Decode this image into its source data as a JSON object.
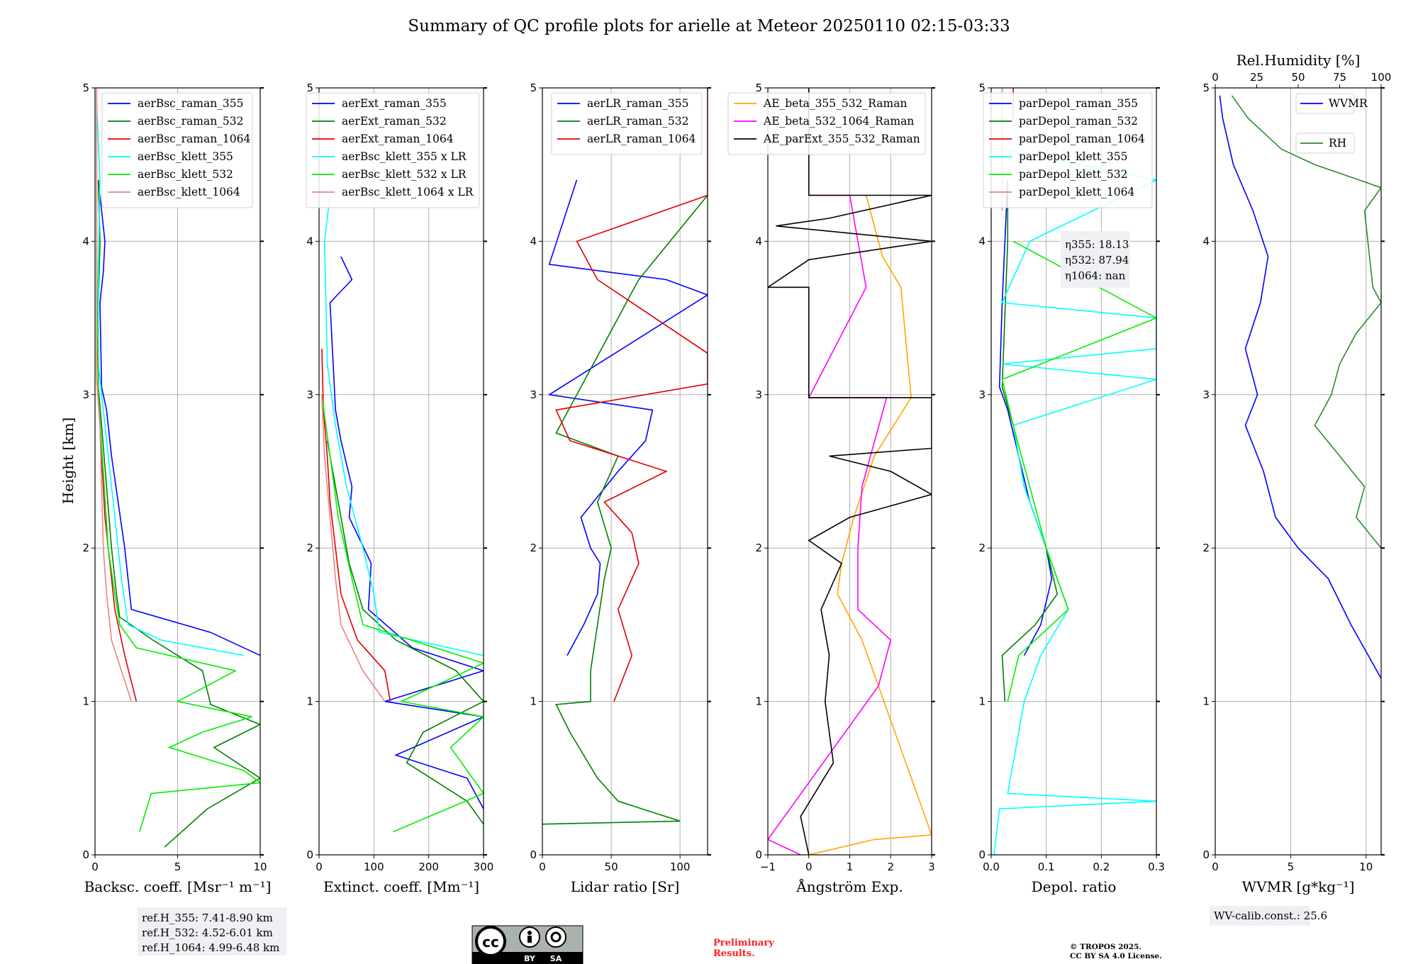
{
  "title": "Summary of QC profile plots for arielle at Meteor 20250110 02:15-03:33",
  "ylabel": "Height [km]",
  "colors": {
    "blue": "#0000ff",
    "green": "#007f00",
    "red": "#e00000",
    "cyan": "#00ffff",
    "lime": "#00ee00",
    "pink": "#f08080",
    "orange": "#ffa500",
    "magenta": "#ff00ff",
    "black": "#000000",
    "dkgreen": "#2e8b2e"
  },
  "notes": {
    "refh": [
      "ref.H_355: 7.41-8.90 km",
      "ref.H_532: 4.52-6.01 km",
      "ref.H_1064: 4.99-6.48 km"
    ],
    "eta": [
      "η355: 18.13",
      "η532: 87.94",
      "η1064: nan"
    ],
    "wv_calib": "WV-calib.const.: 25.6",
    "preliminary": [
      "Preliminary",
      "Results."
    ],
    "copyright": [
      "© TROPOS 2025.",
      "CC BY SA 4.0 License."
    ],
    "cc_badge": [
      "BY",
      "SA"
    ]
  },
  "chart_data": [
    {
      "type": "line",
      "id": "bsc",
      "xlabel": "Backsc. coeff. [Msr⁻¹ m⁻¹]",
      "ylabel": "Height [km]",
      "xlim": [
        0,
        10
      ],
      "ylim": [
        0,
        5
      ],
      "xticks": [
        0,
        5,
        10
      ],
      "yticks": [
        0,
        1,
        2,
        3,
        4,
        5
      ],
      "grid": true,
      "legend": "top-right",
      "series": [
        {
          "name": "aerBsc_raman_355",
          "color": "blue",
          "y": [
            1.3,
            1.45,
            1.6,
            1.8,
            2.0,
            2.3,
            2.6,
            2.9,
            3.05,
            3.6,
            3.8,
            4.0,
            4.2,
            4.4
          ],
          "x": [
            10,
            7,
            2.2,
            2.0,
            1.8,
            1.4,
            1.0,
            0.7,
            0.4,
            0.3,
            0.5,
            0.6,
            0.4,
            0.2
          ]
        },
        {
          "name": "aerBsc_raman_532",
          "color": "green",
          "y": [
            0.05,
            0.3,
            0.5,
            0.7,
            0.85,
            0.98,
            1.2,
            1.4,
            1.55,
            1.7,
            2.0,
            2.4,
            2.8,
            3.05,
            3.6,
            4.0,
            4.4
          ],
          "x": [
            4.2,
            6.8,
            10,
            7.2,
            10,
            7.0,
            6.5,
            3.5,
            1.5,
            1.3,
            1.0,
            0.7,
            0.4,
            0.2,
            0.2,
            0.3,
            0.2
          ]
        },
        {
          "name": "aerBsc_raman_1064",
          "color": "red",
          "y": [
            1.0,
            1.3,
            1.6,
            1.9,
            2.2,
            2.6,
            3.0,
            3.7,
            4.4
          ],
          "x": [
            2.5,
            1.8,
            1.2,
            0.9,
            0.6,
            0.4,
            0.2,
            0.1,
            0.1
          ]
        },
        {
          "name": "aerBsc_klett_355",
          "color": "cyan",
          "y": [
            1.3,
            1.4,
            1.5,
            1.8,
            2.1,
            2.5,
            2.9,
            3.2,
            3.8,
            4.4,
            4.9
          ],
          "x": [
            9,
            4,
            2,
            1.6,
            1.3,
            0.9,
            0.5,
            0.2,
            0.2,
            0.3,
            0.1
          ]
        },
        {
          "name": "aerBsc_klett_532",
          "color": "lime",
          "y": [
            0.15,
            0.4,
            0.47,
            0.55,
            0.7,
            0.8,
            0.9,
            1.0,
            1.2,
            1.35,
            1.5,
            1.7,
            2.0,
            2.5,
            3.0,
            4.0,
            5.0
          ],
          "x": [
            2.7,
            3.4,
            10,
            9,
            4.5,
            6.5,
            9.5,
            5.0,
            8.5,
            2.5,
            1.5,
            1.2,
            0.8,
            0.5,
            0.2,
            0.1,
            0.1
          ]
        },
        {
          "name": "aerBsc_klett_1064",
          "color": "pink",
          "y": [
            1.0,
            1.4,
            1.7,
            2.0,
            2.4,
            2.8,
            3.1,
            4.0,
            5.0
          ],
          "x": [
            2.2,
            1.0,
            0.7,
            0.5,
            0.4,
            0.3,
            0.1,
            0.1,
            0.1
          ]
        }
      ]
    },
    {
      "type": "line",
      "id": "ext",
      "xlabel": "Extinct. coeff. [Mm⁻¹]",
      "ylabel": "",
      "xlim": [
        0,
        300
      ],
      "ylim": [
        0,
        5
      ],
      "xticks": [
        0,
        100,
        200,
        300
      ],
      "yticks": [
        0,
        1,
        2,
        3,
        4,
        5
      ],
      "grid": true,
      "legend": "top-right",
      "series": [
        {
          "name": "aerExt_raman_355",
          "color": "blue",
          "y": [
            0.3,
            0.5,
            0.65,
            0.9,
            1.0,
            1.2,
            1.35,
            1.6,
            1.9,
            2.2,
            2.4,
            2.7,
            2.9,
            3.6,
            3.75,
            3.9
          ],
          "x": [
            300,
            270,
            140,
            300,
            120,
            300,
            170,
            90,
            95,
            55,
            60,
            40,
            30,
            20,
            60,
            40
          ]
        },
        {
          "name": "aerExt_raman_532",
          "color": "green",
          "y": [
            0.2,
            0.35,
            0.6,
            0.8,
            1.0,
            1.2,
            1.4,
            1.6,
            1.9,
            2.3,
            2.7
          ],
          "x": [
            300,
            270,
            160,
            190,
            300,
            250,
            140,
            80,
            55,
            35,
            15
          ]
        },
        {
          "name": "aerExt_raman_1064",
          "color": "red",
          "y": [
            1.0,
            1.2,
            1.4,
            1.7,
            2.0,
            2.3,
            2.6,
            2.9,
            3.3
          ],
          "x": [
            130,
            120,
            70,
            40,
            30,
            20,
            15,
            8,
            5
          ]
        },
        {
          "name": "aerBsc_klett_355 x LR",
          "color": "cyan",
          "y": [
            1.3,
            1.45,
            1.7,
            2.0,
            2.4,
            2.8,
            3.2,
            4.0,
            4.3
          ],
          "x": [
            300,
            110,
            100,
            80,
            50,
            30,
            15,
            10,
            20
          ]
        },
        {
          "name": "aerBsc_klett_532 x LR",
          "color": "lime",
          "y": [
            0.15,
            0.4,
            0.5,
            0.7,
            0.9,
            1.0,
            1.25,
            1.5,
            1.8,
            2.2,
            2.6,
            3.0
          ],
          "x": [
            135,
            300,
            280,
            240,
            300,
            150,
            300,
            80,
            60,
            35,
            20,
            5
          ]
        },
        {
          "name": "aerBsc_klett_1064 x LR",
          "color": "pink",
          "y": [
            1.0,
            1.2,
            1.5,
            1.8,
            2.2,
            2.6,
            3.0
          ],
          "x": [
            120,
            80,
            40,
            30,
            20,
            10,
            5
          ]
        }
      ]
    },
    {
      "type": "line",
      "id": "lr",
      "xlabel": "Lidar ratio [Sr]",
      "ylabel": "",
      "xlim": [
        0,
        120
      ],
      "ylim": [
        0,
        5
      ],
      "xticks": [
        0,
        50,
        100
      ],
      "yticks": [
        0,
        1,
        2,
        3,
        4,
        5
      ],
      "grid": true,
      "legend": "top-right",
      "series": [
        {
          "name": "aerLR_raman_355",
          "color": "blue",
          "y": [
            1.3,
            1.5,
            1.7,
            1.9,
            2.0,
            2.2,
            2.5,
            2.7,
            2.9,
            3.0,
            3.65,
            3.75,
            3.85,
            4.4
          ],
          "x": [
            18,
            30,
            40,
            42,
            35,
            28,
            55,
            75,
            80,
            5,
            120,
            90,
            5,
            25
          ]
        },
        {
          "name": "aerLR_raman_532",
          "color": "green",
          "y": [
            0.2,
            0.22,
            0.35,
            0.5,
            0.8,
            0.98,
            1.0,
            1.2,
            1.5,
            1.8,
            2.0,
            2.3,
            2.6,
            2.75,
            3.75,
            4.3
          ],
          "x": [
            0,
            100,
            55,
            40,
            20,
            10,
            35,
            35,
            40,
            45,
            50,
            40,
            55,
            10,
            70,
            120
          ]
        },
        {
          "name": "aerLR_raman_1064",
          "color": "red",
          "y": [
            1.0,
            1.3,
            1.6,
            1.9,
            2.1,
            2.3,
            2.5,
            2.7,
            2.9,
            3.07,
            3.27,
            3.75,
            4.0,
            4.3,
            4.55,
            4.65,
            5.0
          ],
          "x": [
            52,
            65,
            55,
            70,
            65,
            45,
            90,
            20,
            10,
            120,
            120,
            40,
            25,
            120,
            120,
            120,
            120
          ]
        }
      ]
    },
    {
      "type": "line",
      "id": "ae",
      "xlabel": "Ångström Exp.",
      "ylabel": "",
      "xlim": [
        -1,
        3
      ],
      "ylim": [
        0,
        5
      ],
      "xticks": [
        -1,
        0,
        1,
        2,
        3
      ],
      "yticks": [
        0,
        1,
        2,
        3,
        4,
        5
      ],
      "grid": true,
      "legend": "top-right",
      "series": [
        {
          "name": "AE_beta_355_532_Raman",
          "color": "orange",
          "y": [
            0.0,
            0.1,
            0.13,
            1.4,
            1.7,
            1.9,
            2.2,
            2.6,
            2.98,
            3.7,
            3.9,
            4.3
          ],
          "x": [
            0,
            1.6,
            3.0,
            1.3,
            0.7,
            0.8,
            1.1,
            1.6,
            2.5,
            2.25,
            1.8,
            1.4
          ]
        },
        {
          "name": "AE_beta_532_1064_Raman",
          "color": "magenta",
          "y": [
            0.0,
            0.1,
            1.1,
            1.4,
            1.6,
            2.0,
            2.4,
            2.98,
            2.98,
            3.7,
            4.3,
            4.3
          ],
          "x": [
            -0.2,
            -1.0,
            1.7,
            2.0,
            1.2,
            1.2,
            1.3,
            1.9,
            0.0,
            1.4,
            1.0,
            0.0
          ]
        },
        {
          "name": "AE_parExt_355_532_Raman",
          "color": "black",
          "y": [
            0.0,
            0.25,
            0.6,
            1.0,
            1.3,
            1.6,
            1.9,
            2.05,
            2.2,
            2.35,
            2.5,
            2.6,
            2.65,
            2.98,
            2.98,
            3.7,
            3.7,
            3.88,
            4.0,
            4.1,
            4.15,
            4.3,
            4.3,
            5.0
          ],
          "x": [
            0.0,
            -0.2,
            0.6,
            0.4,
            0.5,
            0.3,
            0.8,
            0.0,
            1.0,
            3.0,
            2.0,
            0.5,
            3.0,
            3.0,
            0.0,
            0.0,
            -1.0,
            0.0,
            3.0,
            -0.8,
            0.5,
            3.0,
            0.0,
            0.0
          ]
        }
      ]
    },
    {
      "type": "line",
      "id": "depol",
      "xlabel": "Depol. ratio",
      "ylabel": "",
      "xlim": [
        0.0,
        0.3
      ],
      "ylim": [
        0,
        5
      ],
      "xticks": [
        0.0,
        0.1,
        0.2,
        0.3
      ],
      "yticks": [
        0,
        1,
        2,
        3,
        4,
        5
      ],
      "grid": true,
      "legend": "top-right",
      "series": [
        {
          "name": "parDepol_raman_355",
          "color": "blue",
          "y": [
            1.3,
            1.5,
            1.8,
            2.0,
            2.3,
            2.6,
            2.9,
            3.05,
            3.6,
            4.0,
            4.4
          ],
          "x": [
            0.06,
            0.09,
            0.11,
            0.1,
            0.07,
            0.05,
            0.03,
            0.015,
            0.02,
            0.025,
            0.03
          ]
        },
        {
          "name": "parDepol_raman_532",
          "color": "green",
          "y": [
            1.0,
            1.3,
            1.5,
            1.7,
            2.0,
            2.4,
            2.8,
            3.05,
            4.0,
            4.4
          ],
          "x": [
            0.025,
            0.02,
            0.08,
            0.12,
            0.1,
            0.06,
            0.04,
            0.02,
            0.03,
            0.03
          ]
        },
        {
          "name": "parDepol_raman_1064",
          "color": "red",
          "y": [
            4.8,
            5.0
          ],
          "x": [
            0.04,
            0.04
          ]
        },
        {
          "name": "parDepol_klett_355",
          "color": "cyan",
          "y": [
            0.0,
            0.3,
            0.35,
            0.4,
            1.0,
            1.3,
            1.6,
            2.0,
            2.4,
            2.8,
            3.1,
            3.2,
            3.3,
            3.5,
            3.6,
            4.0,
            4.4,
            4.6
          ],
          "x": [
            0.005,
            0.015,
            0.3,
            0.03,
            0.06,
            0.09,
            0.14,
            0.1,
            0.06,
            0.04,
            0.3,
            0.02,
            0.3,
            0.3,
            0.02,
            0.07,
            0.3,
            0.02
          ]
        },
        {
          "name": "parDepol_klett_532",
          "color": "lime",
          "y": [
            1.0,
            1.3,
            1.6,
            2.0,
            2.4,
            2.8,
            3.1,
            3.5,
            4.0
          ],
          "x": [
            0.03,
            0.05,
            0.14,
            0.1,
            0.07,
            0.04,
            0.02,
            0.3,
            0.04
          ]
        },
        {
          "name": "parDepol_klett_1064",
          "color": "pink",
          "y": [
            4.2,
            5.0
          ],
          "x": [
            0.02,
            0.02
          ]
        }
      ]
    },
    {
      "type": "line",
      "id": "wv",
      "xlabel": "WVMR [g*kg⁻¹]",
      "x2label": "Rel.Humidity [%]",
      "ylabel": "",
      "xlim": [
        0,
        11
      ],
      "x2lim": [
        0,
        100
      ],
      "ylim": [
        0,
        5
      ],
      "xticks": [
        0,
        5,
        10
      ],
      "x2ticks": [
        0,
        25,
        50,
        75,
        100
      ],
      "yticks": [
        0,
        1,
        2,
        3,
        4,
        5
      ],
      "grid": true,
      "legend": "top-right",
      "series": [
        {
          "name": "WVMR",
          "color": "blue",
          "axis": "x",
          "y": [
            1.15,
            1.5,
            1.8,
            2.0,
            2.2,
            2.5,
            2.8,
            3.0,
            3.3,
            3.6,
            3.9,
            4.2,
            4.5,
            4.8,
            4.95
          ],
          "x": [
            11,
            9,
            7.5,
            5.5,
            4.0,
            3.2,
            2.0,
            2.8,
            2.0,
            3.0,
            3.5,
            2.5,
            1.2,
            0.5,
            0.3
          ]
        },
        {
          "name": "RH",
          "color": "dkgreen",
          "axis": "x2",
          "y": [
            2.0,
            2.2,
            2.4,
            2.6,
            2.8,
            3.0,
            3.2,
            3.4,
            3.6,
            3.7,
            4.2,
            4.35,
            4.5,
            4.6,
            4.8,
            4.95
          ],
          "x": [
            100,
            85,
            90,
            75,
            60,
            70,
            75,
            85,
            100,
            95,
            90,
            100,
            60,
            40,
            20,
            10
          ]
        }
      ]
    }
  ]
}
